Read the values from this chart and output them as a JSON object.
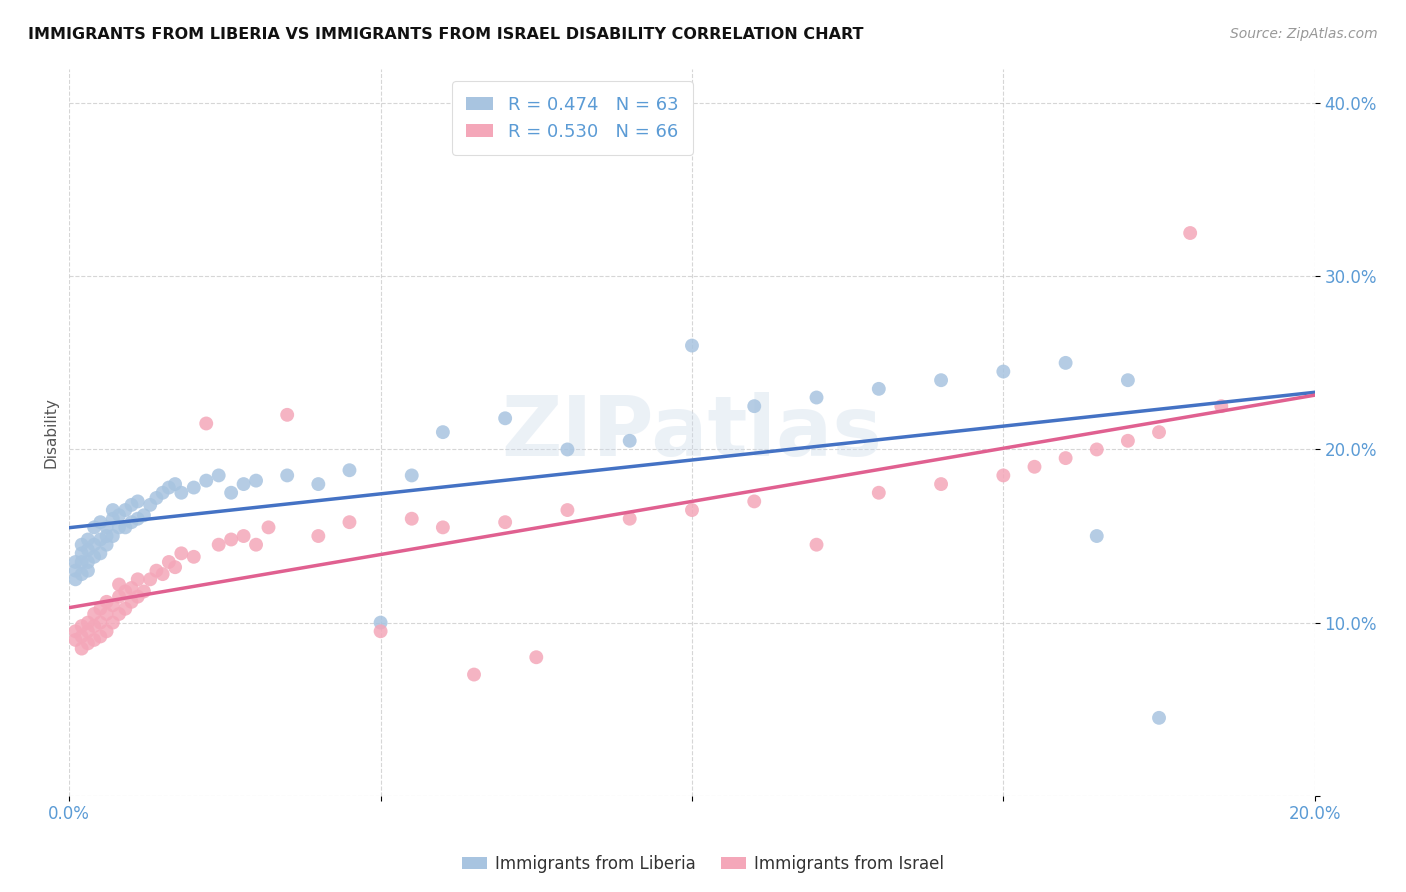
{
  "title": "IMMIGRANTS FROM LIBERIA VS IMMIGRANTS FROM ISRAEL DISABILITY CORRELATION CHART",
  "source": "Source: ZipAtlas.com",
  "ylabel": "Disability",
  "x_min": 0.0,
  "x_max": 0.2,
  "y_min": 0.0,
  "y_max": 0.42,
  "x_ticks": [
    0.0,
    0.05,
    0.1,
    0.15,
    0.2
  ],
  "x_tick_labels": [
    "0.0%",
    "",
    "",
    "",
    "20.0%"
  ],
  "y_ticks": [
    0.0,
    0.1,
    0.2,
    0.3,
    0.4
  ],
  "y_tick_labels": [
    "",
    "10.0%",
    "20.0%",
    "30.0%",
    "40.0%"
  ],
  "color_liberia": "#a8c4e0",
  "color_israel": "#f4a7b9",
  "line_color_liberia": "#4472c4",
  "line_color_israel": "#e06090",
  "R_liberia": 0.474,
  "N_liberia": 63,
  "R_israel": 0.53,
  "N_israel": 66,
  "legend_label_liberia": "Immigrants from Liberia",
  "legend_label_israel": "Immigrants from Israel",
  "watermark": "ZIPatlas",
  "liberia_x": [
    0.001,
    0.001,
    0.001,
    0.002,
    0.002,
    0.002,
    0.002,
    0.003,
    0.003,
    0.003,
    0.003,
    0.004,
    0.004,
    0.004,
    0.005,
    0.005,
    0.005,
    0.006,
    0.006,
    0.006,
    0.007,
    0.007,
    0.007,
    0.008,
    0.008,
    0.009,
    0.009,
    0.01,
    0.01,
    0.011,
    0.011,
    0.012,
    0.013,
    0.014,
    0.015,
    0.016,
    0.017,
    0.018,
    0.02,
    0.022,
    0.024,
    0.026,
    0.028,
    0.03,
    0.035,
    0.04,
    0.045,
    0.05,
    0.055,
    0.06,
    0.07,
    0.08,
    0.09,
    0.1,
    0.11,
    0.12,
    0.13,
    0.14,
    0.15,
    0.16,
    0.165,
    0.17,
    0.175
  ],
  "liberia_y": [
    0.135,
    0.13,
    0.125,
    0.135,
    0.128,
    0.14,
    0.145,
    0.13,
    0.135,
    0.142,
    0.148,
    0.138,
    0.145,
    0.155,
    0.14,
    0.148,
    0.158,
    0.145,
    0.15,
    0.155,
    0.15,
    0.16,
    0.165,
    0.155,
    0.162,
    0.155,
    0.165,
    0.158,
    0.168,
    0.16,
    0.17,
    0.162,
    0.168,
    0.172,
    0.175,
    0.178,
    0.18,
    0.175,
    0.178,
    0.182,
    0.185,
    0.175,
    0.18,
    0.182,
    0.185,
    0.18,
    0.188,
    0.1,
    0.185,
    0.21,
    0.218,
    0.2,
    0.205,
    0.26,
    0.225,
    0.23,
    0.235,
    0.24,
    0.245,
    0.25,
    0.15,
    0.24,
    0.045
  ],
  "israel_x": [
    0.001,
    0.001,
    0.002,
    0.002,
    0.002,
    0.003,
    0.003,
    0.003,
    0.004,
    0.004,
    0.004,
    0.005,
    0.005,
    0.005,
    0.006,
    0.006,
    0.006,
    0.007,
    0.007,
    0.008,
    0.008,
    0.008,
    0.009,
    0.009,
    0.01,
    0.01,
    0.011,
    0.011,
    0.012,
    0.013,
    0.014,
    0.015,
    0.016,
    0.017,
    0.018,
    0.02,
    0.022,
    0.024,
    0.026,
    0.028,
    0.03,
    0.032,
    0.035,
    0.04,
    0.045,
    0.05,
    0.055,
    0.06,
    0.065,
    0.07,
    0.075,
    0.08,
    0.09,
    0.1,
    0.11,
    0.12,
    0.13,
    0.14,
    0.15,
    0.155,
    0.16,
    0.165,
    0.17,
    0.175,
    0.18,
    0.185
  ],
  "israel_y": [
    0.09,
    0.095,
    0.085,
    0.092,
    0.098,
    0.088,
    0.095,
    0.1,
    0.09,
    0.098,
    0.105,
    0.092,
    0.1,
    0.108,
    0.095,
    0.105,
    0.112,
    0.1,
    0.11,
    0.105,
    0.115,
    0.122,
    0.108,
    0.118,
    0.112,
    0.12,
    0.115,
    0.125,
    0.118,
    0.125,
    0.13,
    0.128,
    0.135,
    0.132,
    0.14,
    0.138,
    0.215,
    0.145,
    0.148,
    0.15,
    0.145,
    0.155,
    0.22,
    0.15,
    0.158,
    0.095,
    0.16,
    0.155,
    0.07,
    0.158,
    0.08,
    0.165,
    0.16,
    0.165,
    0.17,
    0.145,
    0.175,
    0.18,
    0.185,
    0.19,
    0.195,
    0.2,
    0.205,
    0.21,
    0.325,
    0.225
  ]
}
